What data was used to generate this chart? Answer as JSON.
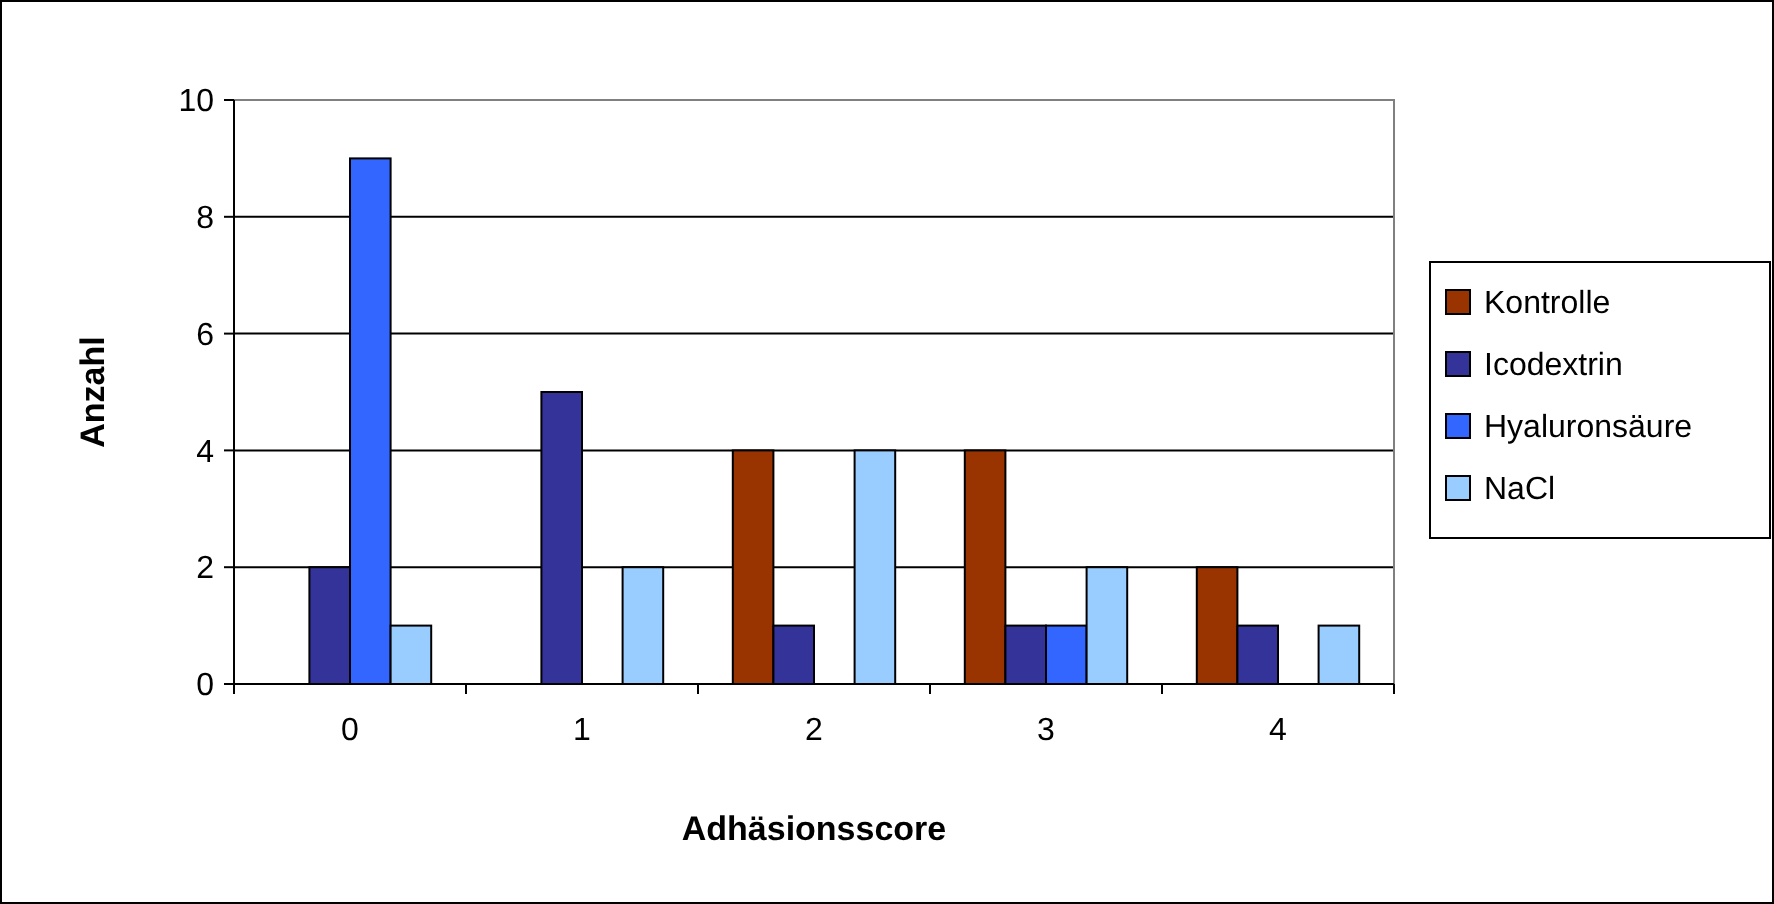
{
  "chart_data": {
    "type": "bar",
    "xlabel": "Adhäsionsscore",
    "ylabel": "Anzahl",
    "categories": [
      "0",
      "1",
      "2",
      "3",
      "4"
    ],
    "series": [
      {
        "name": "Kontrolle",
        "color": "#993300",
        "values": [
          0,
          0,
          4,
          4,
          2
        ]
      },
      {
        "name": "Icodextrin",
        "color": "#333399",
        "values": [
          2,
          5,
          1,
          1,
          1
        ]
      },
      {
        "name": "Hyaluronsäure",
        "color": "#3366ff",
        "values": [
          9,
          0,
          0,
          1,
          0
        ]
      },
      {
        "name": "NaCl",
        "color": "#99ccff",
        "values": [
          1,
          2,
          4,
          2,
          1
        ]
      }
    ],
    "ylim": [
      0,
      10
    ],
    "yticks": [
      0,
      2,
      4,
      6,
      8,
      10
    ],
    "grid": "y",
    "legend": "right"
  }
}
